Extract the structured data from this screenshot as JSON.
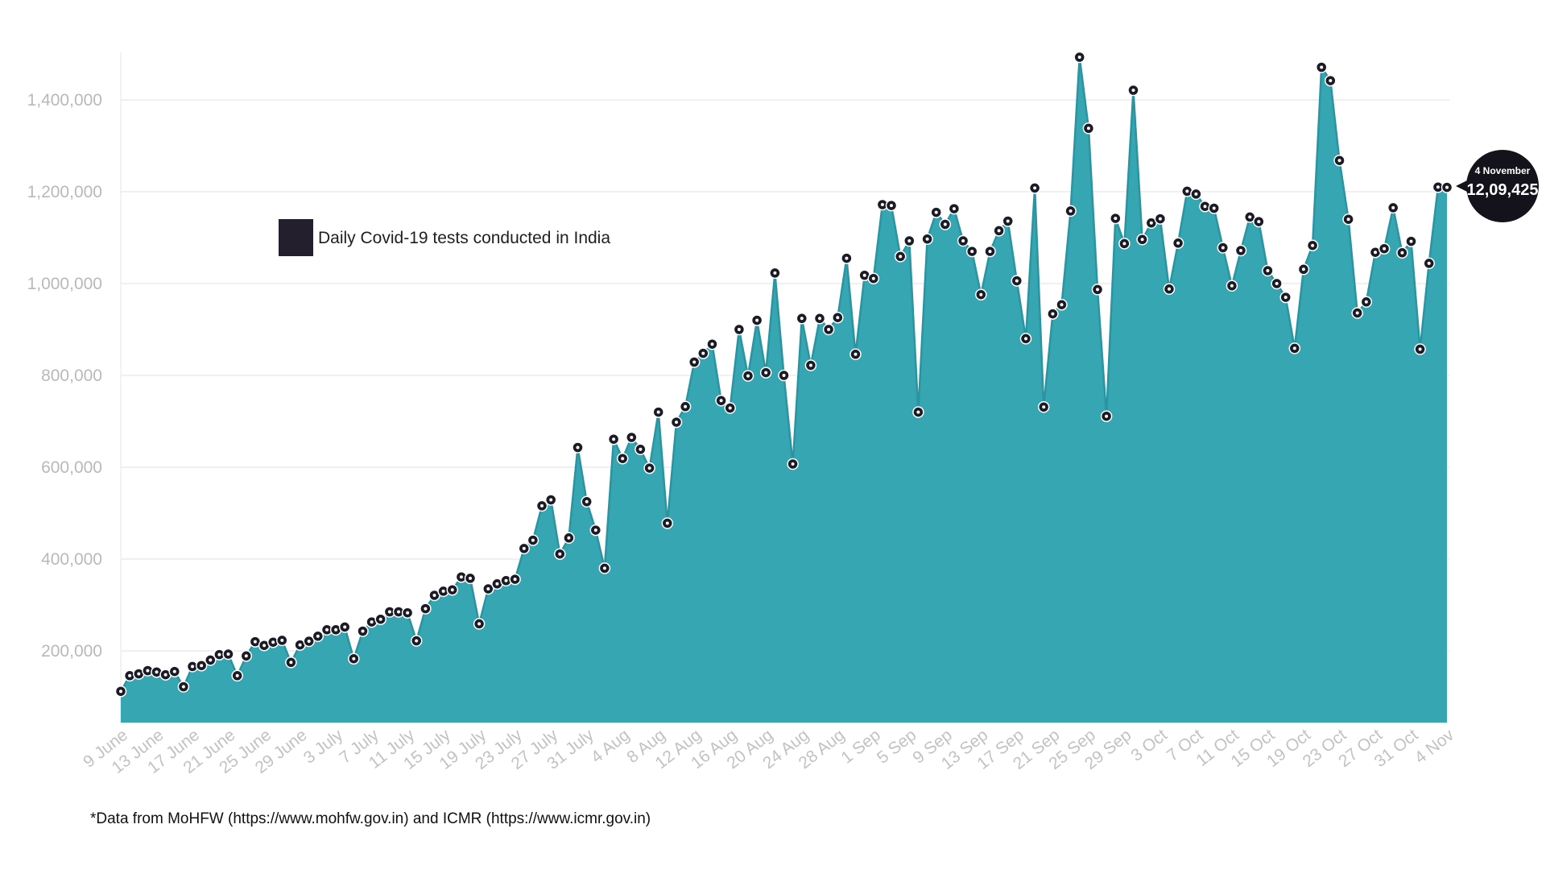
{
  "chart_data": {
    "type": "area",
    "legend": {
      "label": "Daily Covid-19 tests conducted in India",
      "color": "#231f2c"
    },
    "fill_color": "#35a6b2",
    "line_color": "#2b94a1",
    "marker_color": "#1c1a24",
    "grid": true,
    "y_ticks": [
      "200,000",
      "400,000",
      "600,000",
      "800,000",
      "1,000,000",
      "1,200,000",
      "1,400,000"
    ],
    "y_tick_values": [
      200000,
      400000,
      600000,
      800000,
      1000000,
      1200000,
      1400000
    ],
    "ylim": [
      65000,
      1500000
    ],
    "x_ticks": [
      "9 June",
      "13 June",
      "17 June",
      "21 June",
      "25 June",
      "29 June",
      "3 July",
      "7 July",
      "11 July",
      "15 July",
      "19 July",
      "23 July",
      "27 July",
      "31 July",
      "4 Aug",
      "8 Aug",
      "12 Aug",
      "16 Aug",
      "20 Aug",
      "24 Aug",
      "28 Aug",
      "1 Sep",
      "5 Sep",
      "9 Sep",
      "13 Sep",
      "17 Sep",
      "21 Sep",
      "25 Sep",
      "29 Sep",
      "3 Oct",
      "7 Oct",
      "11 Oct",
      "15 Oct",
      "19 Oct",
      "23 Oct",
      "27 Oct",
      "31 Oct",
      "4 Nov"
    ],
    "x_start": "9 June",
    "x_end": "4 Nov",
    "values": [
      112000,
      146000,
      150000,
      157000,
      154000,
      148000,
      155000,
      122000,
      166000,
      168000,
      180000,
      192000,
      193000,
      146000,
      189000,
      220000,
      212000,
      219000,
      223000,
      175000,
      213000,
      221000,
      232000,
      246000,
      246000,
      252000,
      183000,
      243000,
      263000,
      269000,
      285000,
      285000,
      283000,
      222000,
      292000,
      321000,
      330000,
      333000,
      361000,
      358000,
      259000,
      335000,
      346000,
      353000,
      356000,
      423000,
      441000,
      516000,
      529000,
      411000,
      446000,
      643000,
      525000,
      463000,
      380000,
      661000,
      619000,
      665000,
      639000,
      598000,
      720000,
      478000,
      698000,
      732000,
      829000,
      848000,
      868000,
      745000,
      729000,
      900000,
      799000,
      920000,
      806000,
      1023000,
      800000,
      607000,
      924000,
      822000,
      924000,
      900000,
      926000,
      1055000,
      846000,
      1018000,
      1011000,
      1172000,
      1170000,
      1059000,
      1093000,
      720000,
      1097000,
      1155000,
      1129000,
      1163000,
      1093000,
      1070000,
      976000,
      1070000,
      1115000,
      1136000,
      1006000,
      880000,
      1208000,
      731000,
      934000,
      954000,
      1158000,
      1493000,
      1338000,
      987000,
      711000,
      1142000,
      1087000,
      1421000,
      1096000,
      1132000,
      1141000,
      988000,
      1088000,
      1201000,
      1195000,
      1168000,
      1164000,
      1078000,
      995000,
      1072000,
      1145000,
      1135000,
      1028000,
      1000000,
      970000,
      859000,
      1031000,
      1083000,
      1471000,
      1442000,
      1268000,
      1140000,
      936000,
      960000,
      1068000,
      1076000,
      1165000,
      1067000,
      1092000,
      857000,
      1044000,
      1210000,
      1209425
    ],
    "callout": {
      "date": "4 November",
      "value": "12,09,425"
    }
  },
  "footnote": "*Data from MoHFW (https://www.mohfw.gov.in) and ICMR (https://www.icmr.gov.in)"
}
